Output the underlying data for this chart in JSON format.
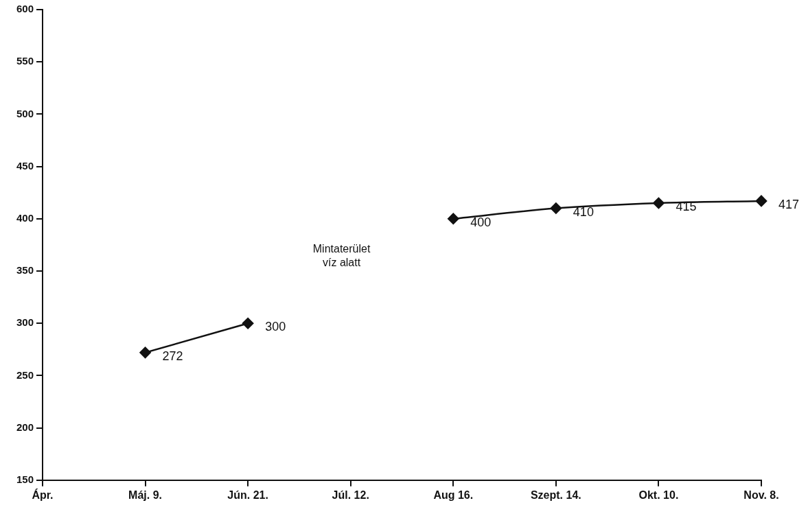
{
  "chart_data": {
    "type": "line",
    "categories": [
      "Ápr.",
      "Máj. 9.",
      "Jún. 21.",
      "Júl. 12.",
      "Aug 16.",
      "Szept. 14.",
      "Okt. 10.",
      "Nov. 8."
    ],
    "values": [
      null,
      272,
      300,
      null,
      400,
      410,
      415,
      417
    ],
    "color": "#111111",
    "ylim": [
      150,
      600
    ],
    "yticks": [
      150,
      200,
      250,
      300,
      350,
      400,
      450,
      500,
      550,
      600
    ],
    "grid": false,
    "legend": false,
    "marker": "diamond",
    "line_style": "solid",
    "data_labels": true,
    "annotations": [
      "Mintaterület\nvíz alatt"
    ]
  }
}
